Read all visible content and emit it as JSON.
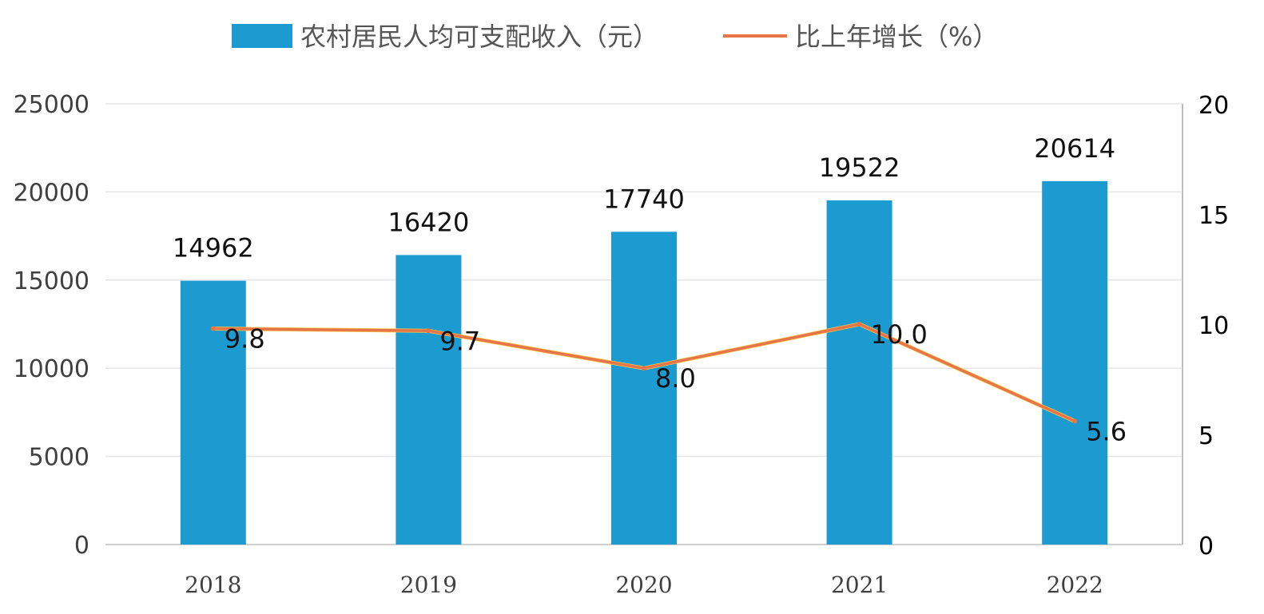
{
  "chart_data": {
    "type": "bar",
    "categories": [
      "2018",
      "2019",
      "2020",
      "2021",
      "2022"
    ],
    "series": [
      {
        "name": "农村居民人均可支配收入（元）",
        "type": "bar",
        "axis": "left",
        "values": [
          14962,
          16420,
          17740,
          19522,
          20614
        ],
        "color": "#1C9BD0"
      },
      {
        "name": "比上年增长（%）",
        "type": "line",
        "axis": "right",
        "values": [
          9.8,
          9.7,
          8.0,
          10.0,
          5.6
        ],
        "labels": [
          "9.8",
          "9.7",
          "8.0",
          "10.0",
          "5.6"
        ],
        "color": "#E8744A"
      }
    ],
    "y_left": {
      "min": 0,
      "max": 25000,
      "ticks": [
        "0",
        "5000",
        "10000",
        "15000",
        "20000",
        "25000"
      ]
    },
    "y_right": {
      "min": 0,
      "max": 20,
      "ticks": [
        "0",
        "5",
        "10",
        "15",
        "20"
      ]
    },
    "legend_position": "top-center",
    "grid": true
  }
}
